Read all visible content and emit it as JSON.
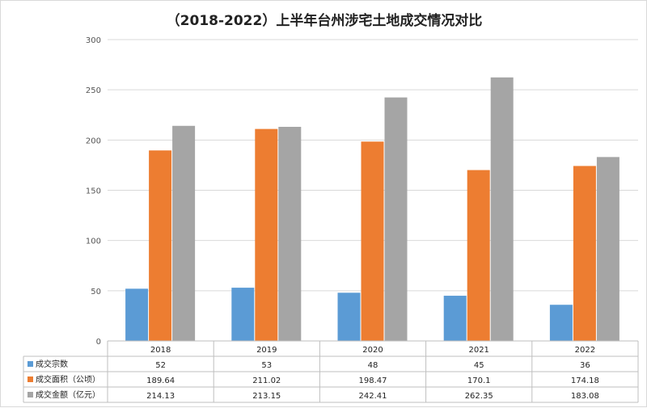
{
  "chart_data": {
    "type": "bar",
    "title": "（2018-2022）上半年台州涉宅土地成交情况对比",
    "categories": [
      "2018",
      "2019",
      "2020",
      "2021",
      "2022"
    ],
    "ylim": [
      0,
      300
    ],
    "yticks": [
      0,
      50,
      100,
      150,
      200,
      250,
      300
    ],
    "grid": true,
    "legend": "data-table-left",
    "series": [
      {
        "name": "成交宗数",
        "color": "#5b9bd5",
        "values": [
          52,
          53,
          48,
          45,
          36
        ],
        "labels": [
          "52",
          "53",
          "48",
          "45",
          "36"
        ]
      },
      {
        "name": "成交面积（公顷）",
        "color": "#ed7d31",
        "values": [
          189.64,
          211.02,
          198.47,
          170.1,
          174.18
        ],
        "labels": [
          "189.64",
          "211.02",
          "198.47",
          "170.1",
          "174.18"
        ]
      },
      {
        "name": "成交金额（亿元）",
        "color": "#a5a5a5",
        "values": [
          214.13,
          213.15,
          242.41,
          262.35,
          183.08
        ],
        "labels": [
          "214.13",
          "213.15",
          "242.41",
          "262.35",
          "183.08"
        ]
      }
    ]
  }
}
